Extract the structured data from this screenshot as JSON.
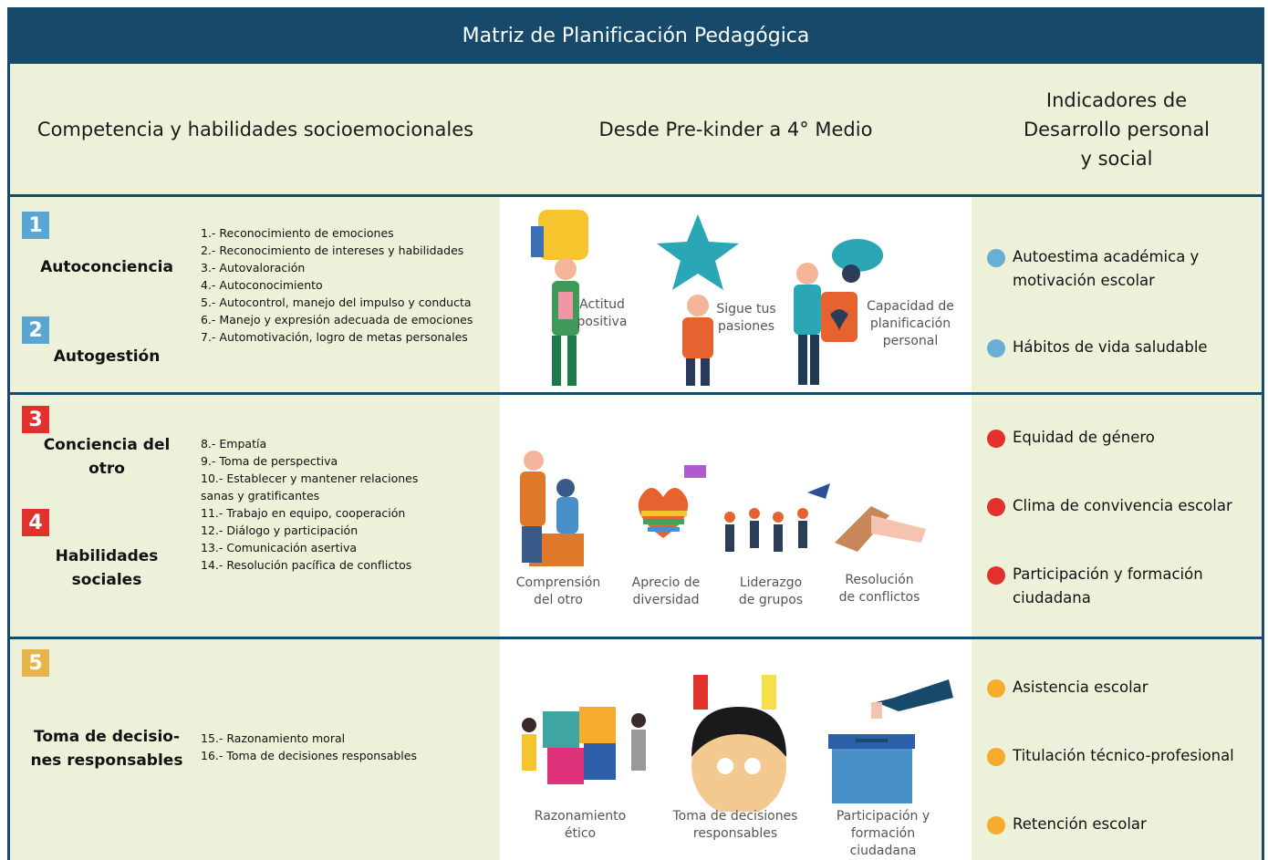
{
  "header": {
    "title": "Matriz  de Planificación Pedagógica",
    "columns": [
      [
        "Competencia y habilidades socioemocionales"
      ],
      [
        "Desde Pre-kinder a 4° Medio"
      ],
      [
        "Indicadores de",
        "Desarrollo personal",
        "y social"
      ]
    ]
  },
  "rows": [
    {
      "competencies": [
        {
          "number": "1",
          "color": "#5aa6d2",
          "name": [
            "Autoconciencia"
          ]
        },
        {
          "number": "2",
          "color": "#5aa6d2",
          "name": [
            "Autogestión"
          ]
        }
      ],
      "skills": [
        "1.- Reconocimiento de emociones",
        "2.- Reconocimiento de intereses y habilidades",
        "3.- Autovaloración",
        "4.- Autoconocimiento",
        "5.- Autocontrol, manejo del impulso y conducta",
        "6.- Manejo y expresión adecuada de emociones",
        "7.- Automotivación, logro de metas personales"
      ],
      "images": [
        [
          "Actitud",
          "positiva"
        ],
        [
          "Sigue tus",
          "pasiones"
        ],
        [
          "Capacidad de",
          "planificación",
          "personal"
        ]
      ],
      "indicators": [
        {
          "color": "#6aaed6",
          "text": [
            "Autoestima académica y",
            "motivación escolar"
          ]
        },
        {
          "color": "#6aaed6",
          "text": [
            "Hábitos de vida saludable"
          ]
        }
      ]
    },
    {
      "competencies": [
        {
          "number": "3",
          "color": "#e2312c",
          "name": [
            "Conciencia del",
            "otro"
          ]
        },
        {
          "number": "4",
          "color": "#e2312c",
          "name": [
            "Habilidades",
            "sociales"
          ]
        }
      ],
      "skills": [
        "8.- Empatía",
        "9.- Toma de perspectiva",
        "10.- Establecer y mantener relaciones sanas y gratificantes",
        "11.- Trabajo en equipo, cooperación",
        "12.- Diálogo y participación",
        "13.- Comunicación asertiva",
        "14.- Resolución pacífica de conflictos"
      ],
      "images": [
        [
          "Comprensión",
          "del otro"
        ],
        [
          "Aprecio de",
          "diversidad"
        ],
        [
          "Liderazgo",
          "de grupos"
        ],
        [
          "Resolución",
          "de conflictos"
        ]
      ],
      "indicators": [
        {
          "color": "#e2312c",
          "text": [
            "Equidad de género"
          ]
        },
        {
          "color": "#e2312c",
          "text": [
            "Clima de convivencia escolar"
          ]
        },
        {
          "color": "#e2312c",
          "text": [
            "Participación y formación",
            "ciudadana"
          ]
        }
      ]
    },
    {
      "competencies": [
        {
          "number": "5",
          "color": "#e6b54a",
          "name": [
            "Toma de decisio-",
            "nes responsables"
          ]
        }
      ],
      "skills": [
        "15.- Razonamiento moral",
        "16.- Toma de decisiones responsables"
      ],
      "images": [
        [
          "Razonamiento",
          "ético"
        ],
        [
          "Toma de decisiones",
          "responsables"
        ],
        [
          "Participación y",
          "formación ciudadana"
        ]
      ],
      "indicators": [
        {
          "color": "#f5ab2b",
          "text": [
            "Asistencia escolar"
          ]
        },
        {
          "color": "#f5ab2b",
          "text": [
            "Titulación técnico-profesional"
          ]
        },
        {
          "color": "#f5ab2b",
          "text": [
            "Retención escolar"
          ]
        }
      ]
    }
  ]
}
